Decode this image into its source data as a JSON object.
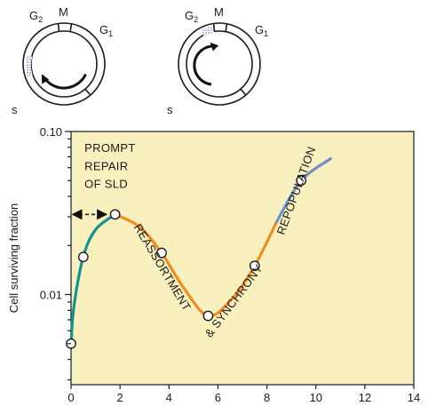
{
  "cycle_diagrams": [
    {
      "phase_labels": {
        "g2": "G",
        "g2_sub": "2",
        "m": "M",
        "g1": "G",
        "g1_sub": "1",
        "s": "s"
      },
      "stippled_phase": "s"
    },
    {
      "phase_labels": {
        "g2": "G",
        "g2_sub": "2",
        "m": "M",
        "g1": "G",
        "g1_sub": "1",
        "s": "s"
      },
      "stippled_phase": "g2"
    }
  ],
  "chart_data": {
    "type": "line",
    "title": "",
    "xlabel": "",
    "ylabel": "Cell surviving fraction",
    "x_scale": "linear",
    "y_scale": "log",
    "xlim": [
      0,
      14
    ],
    "ylim": [
      0.0028,
      0.1
    ],
    "x_ticks": [
      0,
      2,
      4,
      6,
      8,
      10,
      12,
      14
    ],
    "y_tick_labels": [
      {
        "value": 0.1,
        "label": "0.10"
      },
      {
        "value": 0.01,
        "label": "0.01"
      }
    ],
    "points": [
      {
        "x": 0,
        "y": 0.005
      },
      {
        "x": 0.5,
        "y": 0.017
      },
      {
        "x": 1.8,
        "y": 0.031
      },
      {
        "x": 3.7,
        "y": 0.018
      },
      {
        "x": 5.6,
        "y": 0.0074
      },
      {
        "x": 7.5,
        "y": 0.015
      },
      {
        "x": 9.4,
        "y": 0.05
      }
    ],
    "curve_segments": [
      {
        "color": "#11938f",
        "points": [
          [
            0,
            0.005
          ],
          [
            0.12,
            0.0085
          ],
          [
            0.5,
            0.017
          ],
          [
            1.0,
            0.025
          ],
          [
            1.8,
            0.031
          ]
        ]
      },
      {
        "color": "#f28c1e",
        "points": [
          [
            1.8,
            0.031
          ],
          [
            2.8,
            0.026
          ],
          [
            3.7,
            0.018
          ],
          [
            4.6,
            0.011
          ],
          [
            5.6,
            0.0074
          ],
          [
            6.6,
            0.0095
          ],
          [
            7.5,
            0.015
          ],
          [
            8.4,
            0.028
          ]
        ]
      },
      {
        "color": "#6f8fc6",
        "points": [
          [
            8.4,
            0.028
          ],
          [
            9.4,
            0.05
          ],
          [
            10.6,
            0.068
          ]
        ]
      }
    ],
    "annotations": [
      {
        "text": "PROMPT",
        "x": 0.55,
        "y": 0.075
      },
      {
        "text": "REPAIR",
        "x": 0.55,
        "y": 0.058
      },
      {
        "text": "OF SLD",
        "x": 0.55,
        "y": 0.045
      },
      {
        "text": "REASSORTMENT",
        "x": 2.55,
        "y": 0.026,
        "angle": 59
      },
      {
        "text": "& SYNCHRONY",
        "x": 5.7,
        "y": 0.0054,
        "angle": -53
      },
      {
        "text": "REPOPULATION",
        "x": 8.7,
        "y": 0.023,
        "angle": -70
      }
    ],
    "dashed_arrow": {
      "from_x": 0,
      "to_x": 1.8,
      "y": 0.031
    },
    "grid": false,
    "legend": "none"
  }
}
